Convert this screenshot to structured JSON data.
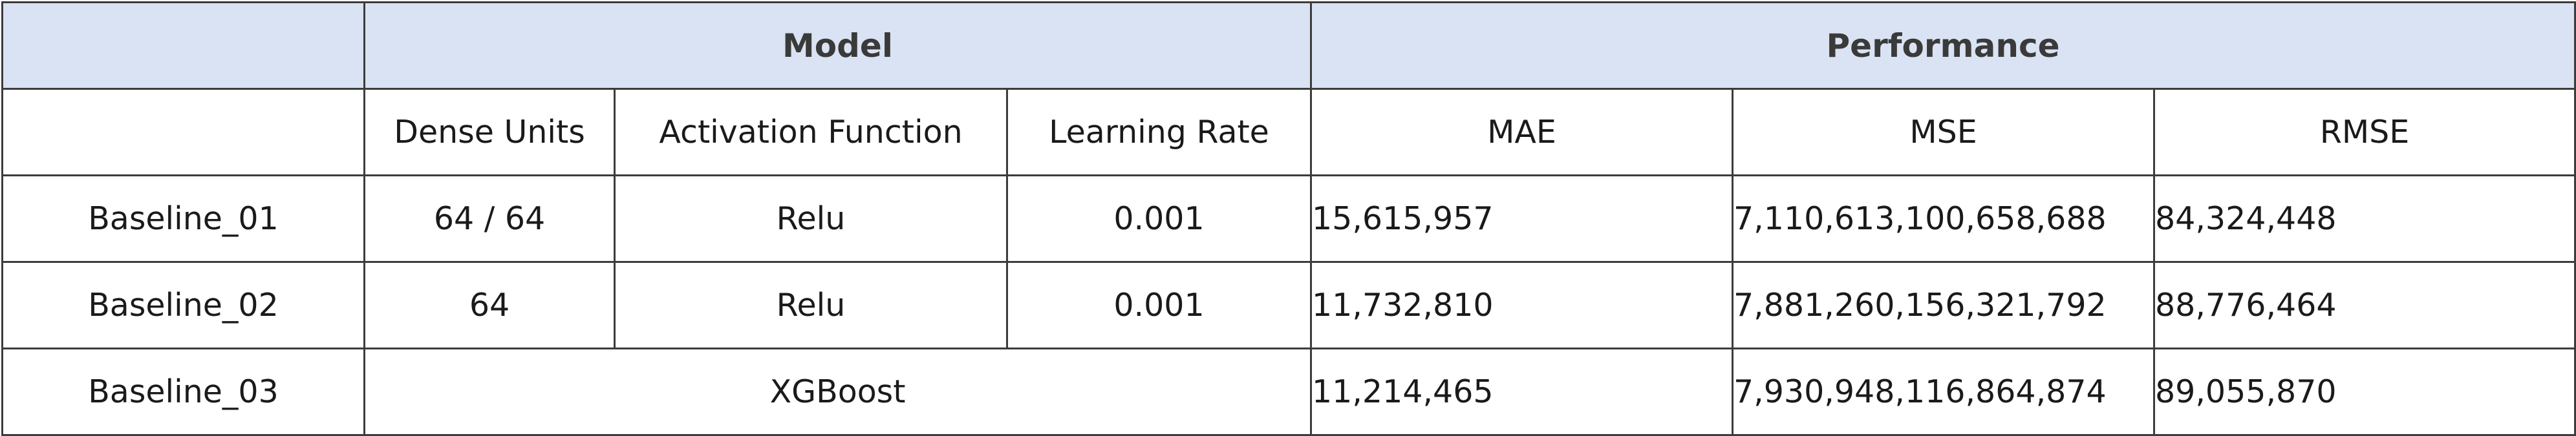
{
  "header": {
    "group_blank": "",
    "model_group": "Model",
    "performance_group": "Performance",
    "columns": [
      "",
      "Dense Units",
      "Activation Function",
      "Learning Rate",
      "MAE",
      "MSE",
      "RMSE"
    ]
  },
  "rows": [
    {
      "name": "Baseline_01",
      "dense_units": "64 / 64",
      "activation": "Relu",
      "learning_rate": "0.001",
      "mae": "15,615,957",
      "mse": "7,110,613,100,658,688",
      "rmse": "84,324,448"
    },
    {
      "name": "Baseline_02",
      "dense_units": "64",
      "activation": "Relu",
      "learning_rate": "0.001",
      "mae": "11,732,810",
      "mse": "7,881,260,156,321,792",
      "rmse": "88,776,464"
    },
    {
      "name": "Baseline_03",
      "model": "XGBoost",
      "mae": "11,214,465",
      "mse": "7,930,948,116,864,874",
      "rmse": "89,055,870"
    }
  ],
  "colors": {
    "header_background": "#dae3f3",
    "border": "#3c3c3c",
    "text": "#1a1a1a"
  }
}
